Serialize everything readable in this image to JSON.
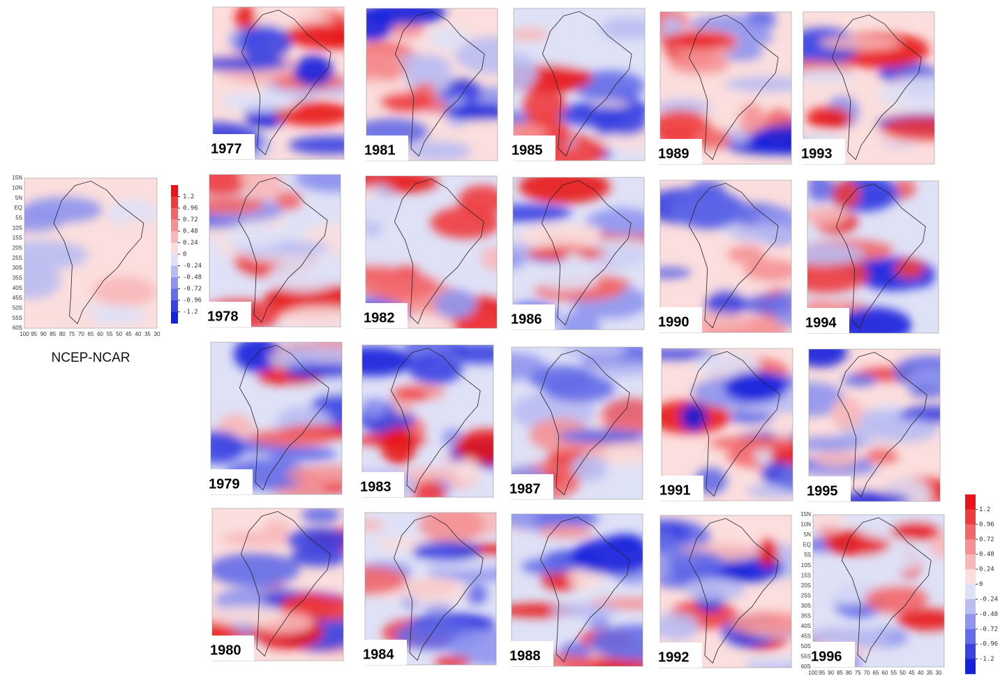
{
  "reference": {
    "label": "NCEP-NCAR",
    "lat_ticks": [
      "15N",
      "10N",
      "5N",
      "EQ",
      "5S",
      "10S",
      "15S",
      "20S",
      "25S",
      "30S",
      "35S",
      "40S",
      "45S",
      "50S",
      "55S",
      "60S"
    ],
    "lon_ticks": [
      100,
      95,
      90,
      85,
      80,
      75,
      70,
      65,
      60,
      55,
      50,
      45,
      40,
      35,
      30
    ]
  },
  "colorbar": {
    "levels": [
      1.2,
      0.96,
      0.72,
      0.48,
      0.24,
      0,
      -0.24,
      -0.48,
      -0.72,
      -0.96,
      -1.2
    ],
    "colors": [
      "#e8141a",
      "#ee3b3e",
      "#f2676a",
      "#f59193",
      "#f8b8b9",
      "#fbdedd",
      "#dfe1f6",
      "#b9bdf2",
      "#8f95ee",
      "#646ce8",
      "#3a43e2",
      "#1520dc"
    ]
  },
  "panels": [
    {
      "year": "1977"
    },
    {
      "year": "1978"
    },
    {
      "year": "1979"
    },
    {
      "year": "1980"
    },
    {
      "year": "1981"
    },
    {
      "year": "1982"
    },
    {
      "year": "1983"
    },
    {
      "year": "1984"
    },
    {
      "year": "1985"
    },
    {
      "year": "1986"
    },
    {
      "year": "1987"
    },
    {
      "year": "1988"
    },
    {
      "year": "1989"
    },
    {
      "year": "1990"
    },
    {
      "year": "1991"
    },
    {
      "year": "1992"
    },
    {
      "year": "1993"
    },
    {
      "year": "1994"
    },
    {
      "year": "1995"
    },
    {
      "year": "1996"
    }
  ]
}
